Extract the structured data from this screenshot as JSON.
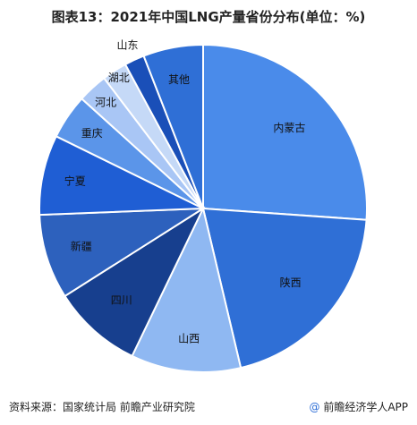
{
  "colors": {
    "blue1": "#4a8bea",
    "blue2": "#2f6fd6",
    "light1": "#8fb8f2",
    "navy": "#173f8e",
    "blue3": "#2d61bd",
    "blue4": "#1f5ed4",
    "mid": "#5b95e9",
    "pale": "#a9c6f5",
    "paler": "#c5d9f7",
    "dark": "#1a4fb8",
    "stroke": "#ffffff"
  },
  "chart_data": {
    "type": "pie",
    "title": "图表13：2021年中国LNG产量省份分布(单位：%)",
    "start_angle_deg": 0,
    "direction": "clockwise",
    "slices": [
      {
        "label": "内蒙古",
        "value": 26.5,
        "color": "#4a8bea"
      },
      {
        "label": "陕西",
        "value": 20.5,
        "color": "#2f6fd6"
      },
      {
        "label": "山西",
        "value": 11.0,
        "color": "#8fb8f2"
      },
      {
        "label": "四川",
        "value": 9.0,
        "color": "#173f8e"
      },
      {
        "label": "新疆",
        "value": 8.5,
        "color": "#2d61bd"
      },
      {
        "label": "宁夏",
        "value": 8.0,
        "color": "#1f5ed4"
      },
      {
        "label": "重庆",
        "value": 4.5,
        "color": "#5b95e9"
      },
      {
        "label": "河北",
        "value": 3.0,
        "color": "#a9c6f5"
      },
      {
        "label": "湖北",
        "value": 2.5,
        "color": "#c5d9f7"
      },
      {
        "label": "山东",
        "value": 2.0,
        "color": "#1a4fb8"
      },
      {
        "label": "其他",
        "value": 6.0,
        "color": "#2f6fd6"
      }
    ]
  },
  "footer": {
    "source": "资料来源：国家统计局 前瞻产业研究院",
    "brand_icon": "@",
    "brand": "前瞻经济学人APP"
  }
}
